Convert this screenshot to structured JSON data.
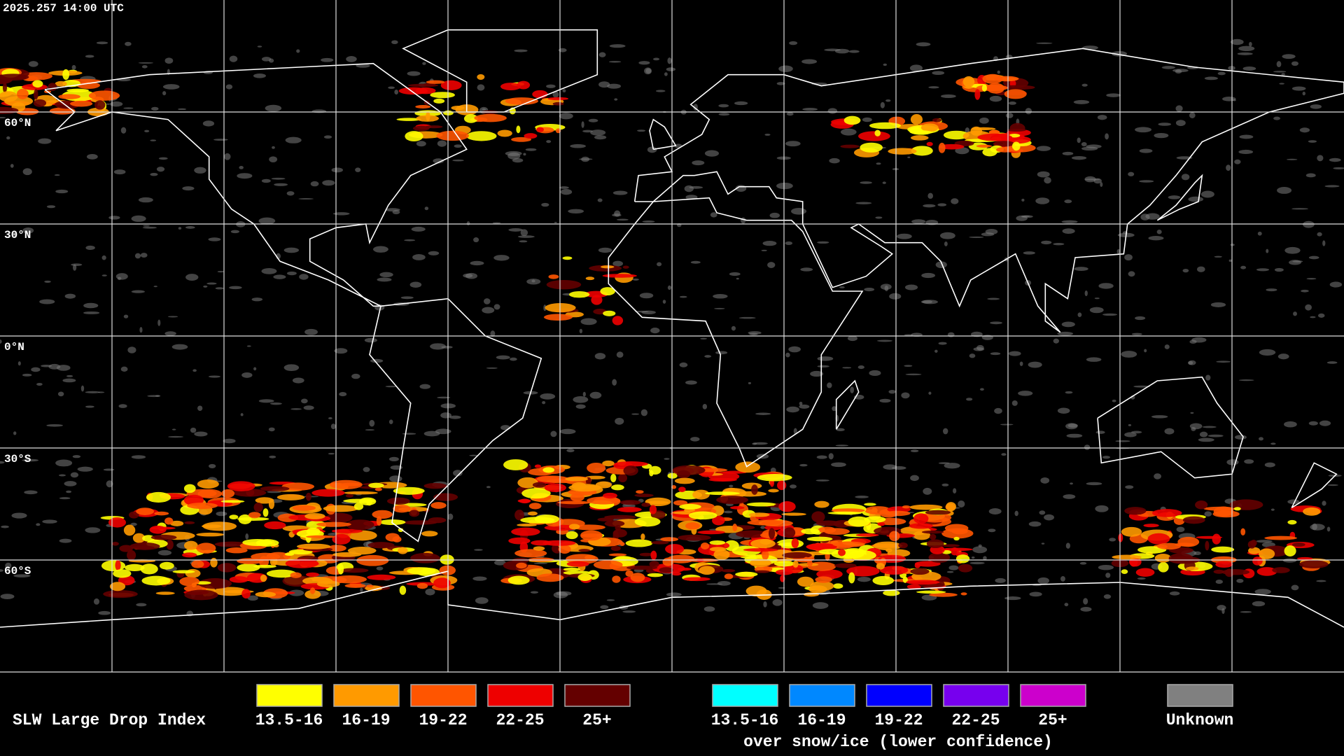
{
  "timestamp": "2025.257 14:00 UTC",
  "latitude_labels": [
    "60°N",
    "30°N",
    "0°N",
    "30°S",
    "60°S"
  ],
  "legend": {
    "title": "SLW Large Drop Index",
    "items": [
      {
        "label": "13.5-16",
        "color": "#ffff00"
      },
      {
        "label": "16-19",
        "color": "#ff9a00"
      },
      {
        "label": "19-22",
        "color": "#ff5500"
      },
      {
        "label": "22-25",
        "color": "#ee0000"
      },
      {
        "label": "25+",
        "color": "#640000"
      }
    ],
    "snow_ice_items": [
      {
        "label": "13.5-16",
        "color": "#00ffff"
      },
      {
        "label": "16-19",
        "color": "#0088ff"
      },
      {
        "label": "19-22",
        "color": "#0000ff"
      },
      {
        "label": "22-25",
        "color": "#7700ee"
      },
      {
        "label": "25+",
        "color": "#cc00cc"
      }
    ],
    "snow_ice_note": "over snow/ice (lower confidence)",
    "unknown": {
      "label": "Unknown",
      "color": "#808080"
    }
  }
}
